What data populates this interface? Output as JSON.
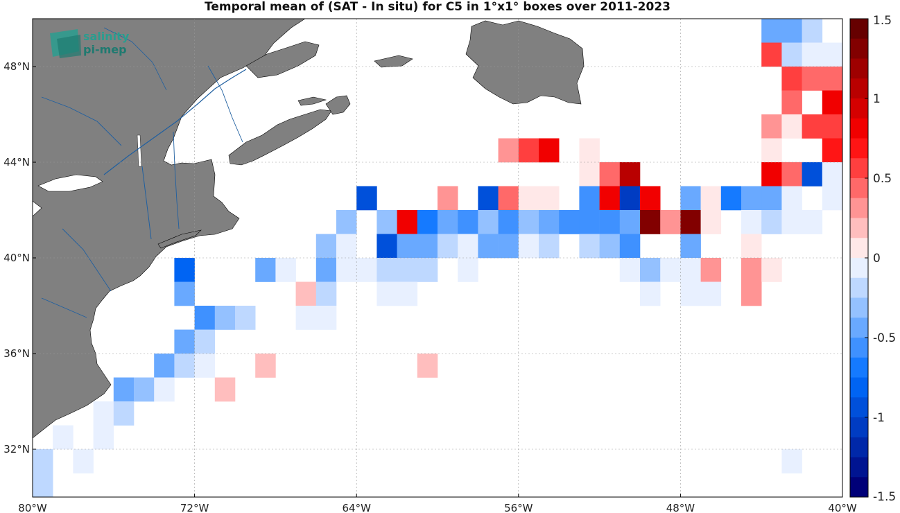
{
  "title": "Temporal mean of (SAT - In situ) for C5 in 1°x1° boxes over 2011-2023",
  "logo": {
    "line1": "salinity",
    "line2": "pi-mep"
  },
  "map": {
    "lon_range": [
      -80,
      -40
    ],
    "lat_range": [
      30,
      50
    ],
    "lon_ticks": [
      {
        "v": -80,
        "label": "80°W"
      },
      {
        "v": -72,
        "label": "72°W"
      },
      {
        "v": -64,
        "label": "64°W"
      },
      {
        "v": -56,
        "label": "56°W"
      },
      {
        "v": -48,
        "label": "48°W"
      },
      {
        "v": -40,
        "label": "40°W"
      }
    ],
    "lat_ticks": [
      {
        "v": 32,
        "label": "32°N"
      },
      {
        "v": 36,
        "label": "36°N"
      },
      {
        "v": 40,
        "label": "40°N"
      },
      {
        "v": 44,
        "label": "44°N"
      },
      {
        "v": 48,
        "label": "48°N"
      }
    ],
    "grid": true,
    "land_color": "#808080"
  },
  "colorbar": {
    "range": [
      -1.5,
      1.5
    ],
    "levels": 24,
    "tick_labels": [
      "1.5",
      "1",
      "0.5",
      "0",
      "-0.5",
      "-1",
      "-1.5"
    ],
    "tick_values": [
      1.5,
      1,
      0.5,
      0,
      -0.5,
      -1,
      -1.5
    ],
    "colormap": "blue-white-red"
  },
  "chart_data": {
    "type": "heatmap",
    "title": "Temporal mean of (SAT - In situ) for C5 in 1°x1° boxes over 2011-2023",
    "cell_size_deg": 1,
    "value_range": [
      -1.5,
      1.5
    ],
    "cells": [
      {
        "lon": -44,
        "lat": 49,
        "v": -0.4
      },
      {
        "lon": -43,
        "lat": 49,
        "v": -0.5
      },
      {
        "lon": -42,
        "lat": 49,
        "v": -0.2
      },
      {
        "lon": -40,
        "lat": 49,
        "v": 0.2
      },
      {
        "lon": -38,
        "lat": 49,
        "v": 0.2
      },
      {
        "lon": -37,
        "lat": 49,
        "v": -0.1
      },
      {
        "lon": -36,
        "lat": 49,
        "v": -0.1
      },
      {
        "lon": -44,
        "lat": 48,
        "v": 0.6
      },
      {
        "lon": -43,
        "lat": 48,
        "v": -0.2
      },
      {
        "lon": -42,
        "lat": 48,
        "v": -0.1
      },
      {
        "lon": -41,
        "lat": 48,
        "v": -0.1
      },
      {
        "lon": -39,
        "lat": 48,
        "v": 0.3
      },
      {
        "lon": -38,
        "lat": 48,
        "v": 0.6
      },
      {
        "lon": -37,
        "lat": 48,
        "v": -0.1
      },
      {
        "lon": -36,
        "lat": 48,
        "v": -0.2
      },
      {
        "lon": -43,
        "lat": 47,
        "v": 0.6
      },
      {
        "lon": -42,
        "lat": 47,
        "v": 0.4
      },
      {
        "lon": -41,
        "lat": 47,
        "v": 0.4
      },
      {
        "lon": -40,
        "lat": 47,
        "v": 0.4
      },
      {
        "lon": -39,
        "lat": 47,
        "v": 0.4
      },
      {
        "lon": -38,
        "lat": 47,
        "v": 0.1
      },
      {
        "lon": -43,
        "lat": 46,
        "v": 0.4
      },
      {
        "lon": -41,
        "lat": 46,
        "v": 0.8
      },
      {
        "lon": -40,
        "lat": 46,
        "v": 0.4
      },
      {
        "lon": -39,
        "lat": 46,
        "v": 0.8
      },
      {
        "lon": -38,
        "lat": 46,
        "v": 0.6
      },
      {
        "lon": -37,
        "lat": 46,
        "v": 0.6
      },
      {
        "lon": -36,
        "lat": 46,
        "v": -0.5
      },
      {
        "lon": -44,
        "lat": 45,
        "v": 0.3
      },
      {
        "lon": -43,
        "lat": 45,
        "v": 0.1
      },
      {
        "lon": -42,
        "lat": 45,
        "v": 0.5
      },
      {
        "lon": -41,
        "lat": 45,
        "v": 0.6
      },
      {
        "lon": -40,
        "lat": 45,
        "v": 0.5
      },
      {
        "lon": -39,
        "lat": 45,
        "v": -0.6
      },
      {
        "lon": -38,
        "lat": 45,
        "v": -0.5
      },
      {
        "lon": -37,
        "lat": 45,
        "v": -0.1
      },
      {
        "lon": -36,
        "lat": 45,
        "v": -0.1
      },
      {
        "lon": -57,
        "lat": 44,
        "v": 0.3
      },
      {
        "lon": -56,
        "lat": 44,
        "v": 0.5
      },
      {
        "lon": -55,
        "lat": 44,
        "v": 0.8
      },
      {
        "lon": -53,
        "lat": 44,
        "v": 0.1
      },
      {
        "lon": -44,
        "lat": 44,
        "v": 0.1
      },
      {
        "lon": -41,
        "lat": 44,
        "v": 0.7
      },
      {
        "lon": -40,
        "lat": 44,
        "v": 0.4
      },
      {
        "lon": -39,
        "lat": 44,
        "v": 0.4
      },
      {
        "lon": -38,
        "lat": 44,
        "v": 0.1
      },
      {
        "lon": -53,
        "lat": 43,
        "v": 0.1
      },
      {
        "lon": -52,
        "lat": 43,
        "v": 0.4
      },
      {
        "lon": -51,
        "lat": 43,
        "v": 1.1
      },
      {
        "lon": -44,
        "lat": 43,
        "v": 0.8
      },
      {
        "lon": -43,
        "lat": 43,
        "v": 0.4
      },
      {
        "lon": -42,
        "lat": 43,
        "v": -1.0
      },
      {
        "lon": -41,
        "lat": 43,
        "v": -0.1
      },
      {
        "lon": -40,
        "lat": 43,
        "v": -0.2
      },
      {
        "lon": -39,
        "lat": 43,
        "v": 0.1
      },
      {
        "lon": -38,
        "lat": 43,
        "v": -0.2
      },
      {
        "lon": -37,
        "lat": 43,
        "v": -0.1
      },
      {
        "lon": -36,
        "lat": 43,
        "v": -0.1
      },
      {
        "lon": -64,
        "lat": 42,
        "v": -0.9
      },
      {
        "lon": -60,
        "lat": 42,
        "v": 0.3
      },
      {
        "lon": -58,
        "lat": 42,
        "v": -0.9
      },
      {
        "lon": -57,
        "lat": 42,
        "v": 0.4
      },
      {
        "lon": -56,
        "lat": 42,
        "v": 0.1
      },
      {
        "lon": -55,
        "lat": 42,
        "v": 0.1
      },
      {
        "lon": -53,
        "lat": 42,
        "v": -0.6
      },
      {
        "lon": -52,
        "lat": 42,
        "v": 0.8
      },
      {
        "lon": -51,
        "lat": 42,
        "v": -1.1
      },
      {
        "lon": -50,
        "lat": 42,
        "v": 0.8
      },
      {
        "lon": -48,
        "lat": 42,
        "v": -0.4
      },
      {
        "lon": -47,
        "lat": 42,
        "v": 0.0
      },
      {
        "lon": -46,
        "lat": 42,
        "v": -0.7
      },
      {
        "lon": -45,
        "lat": 42,
        "v": -0.5
      },
      {
        "lon": -44,
        "lat": 42,
        "v": -0.4
      },
      {
        "lon": -43,
        "lat": 42,
        "v": -0.1
      },
      {
        "lon": -41,
        "lat": 42,
        "v": -0.1
      },
      {
        "lon": -65,
        "lat": 41,
        "v": -0.3
      },
      {
        "lon": -63,
        "lat": 41,
        "v": -0.3
      },
      {
        "lon": -62,
        "lat": 41,
        "v": 0.8
      },
      {
        "lon": -61,
        "lat": 41,
        "v": -0.7
      },
      {
        "lon": -60,
        "lat": 41,
        "v": -0.5
      },
      {
        "lon": -59,
        "lat": 41,
        "v": -0.6
      },
      {
        "lon": -58,
        "lat": 41,
        "v": -0.3
      },
      {
        "lon": -57,
        "lat": 41,
        "v": -0.6
      },
      {
        "lon": -56,
        "lat": 41,
        "v": -0.3
      },
      {
        "lon": -55,
        "lat": 41,
        "v": -0.5
      },
      {
        "lon": -54,
        "lat": 41,
        "v": -0.6
      },
      {
        "lon": -53,
        "lat": 41,
        "v": -0.6
      },
      {
        "lon": -52,
        "lat": 41,
        "v": -0.6
      },
      {
        "lon": -51,
        "lat": 41,
        "v": -0.4
      },
      {
        "lon": -50,
        "lat": 41,
        "v": 1.3
      },
      {
        "lon": -49,
        "lat": 41,
        "v": 0.3
      },
      {
        "lon": -48,
        "lat": 41,
        "v": 1.3
      },
      {
        "lon": -47,
        "lat": 41,
        "v": 0.1
      },
      {
        "lon": -45,
        "lat": 41,
        "v": -0.1
      },
      {
        "lon": -44,
        "lat": 41,
        "v": -0.2
      },
      {
        "lon": -43,
        "lat": 41,
        "v": -0.1
      },
      {
        "lon": -42,
        "lat": 41,
        "v": -0.1
      },
      {
        "lon": -66,
        "lat": 40,
        "v": -0.3
      },
      {
        "lon": -65,
        "lat": 40,
        "v": -0.1
      },
      {
        "lon": -63,
        "lat": 40,
        "v": -0.9
      },
      {
        "lon": -62,
        "lat": 40,
        "v": -0.5
      },
      {
        "lon": -61,
        "lat": 40,
        "v": -0.5
      },
      {
        "lon": -60,
        "lat": 40,
        "v": -0.2
      },
      {
        "lon": -59,
        "lat": 40,
        "v": -0.1
      },
      {
        "lon": -58,
        "lat": 40,
        "v": -0.4
      },
      {
        "lon": -57,
        "lat": 40,
        "v": -0.4
      },
      {
        "lon": -56,
        "lat": 40,
        "v": -0.1
      },
      {
        "lon": -55,
        "lat": 40,
        "v": -0.2
      },
      {
        "lon": -53,
        "lat": 40,
        "v": -0.2
      },
      {
        "lon": -52,
        "lat": 40,
        "v": -0.3
      },
      {
        "lon": -51,
        "lat": 40,
        "v": -0.6
      },
      {
        "lon": -48,
        "lat": 40,
        "v": -0.4
      },
      {
        "lon": -45,
        "lat": 40,
        "v": 0.1
      },
      {
        "lon": -73,
        "lat": 39,
        "v": -0.8
      },
      {
        "lon": -69,
        "lat": 39,
        "v": -0.4
      },
      {
        "lon": -68,
        "lat": 39,
        "v": -0.1
      },
      {
        "lon": -66,
        "lat": 39,
        "v": -0.4
      },
      {
        "lon": -65,
        "lat": 39,
        "v": -0.1
      },
      {
        "lon": -64,
        "lat": 39,
        "v": -0.1
      },
      {
        "lon": -63,
        "lat": 39,
        "v": -0.2
      },
      {
        "lon": -62,
        "lat": 39,
        "v": -0.2
      },
      {
        "lon": -61,
        "lat": 39,
        "v": -0.2
      },
      {
        "lon": -59,
        "lat": 39,
        "v": -0.1
      },
      {
        "lon": -51,
        "lat": 39,
        "v": -0.1
      },
      {
        "lon": -50,
        "lat": 39,
        "v": -0.3
      },
      {
        "lon": -49,
        "lat": 39,
        "v": -0.1
      },
      {
        "lon": -48,
        "lat": 39,
        "v": -0.1
      },
      {
        "lon": -47,
        "lat": 39,
        "v": 0.3
      },
      {
        "lon": -45,
        "lat": 39,
        "v": 0.3
      },
      {
        "lon": -44,
        "lat": 39,
        "v": 0.1
      },
      {
        "lon": -73,
        "lat": 38,
        "v": -0.5
      },
      {
        "lon": -67,
        "lat": 38,
        "v": 0.2
      },
      {
        "lon": -66,
        "lat": 38,
        "v": -0.2
      },
      {
        "lon": -63,
        "lat": 38,
        "v": -0.1
      },
      {
        "lon": -62,
        "lat": 38,
        "v": -0.1
      },
      {
        "lon": -50,
        "lat": 38,
        "v": -0.1
      },
      {
        "lon": -48,
        "lat": 38,
        "v": -0.1
      },
      {
        "lon": -47,
        "lat": 38,
        "v": -0.1
      },
      {
        "lon": -45,
        "lat": 38,
        "v": 0.3
      },
      {
        "lon": -72,
        "lat": 37,
        "v": -0.6
      },
      {
        "lon": -71,
        "lat": 37,
        "v": -0.3
      },
      {
        "lon": -70,
        "lat": 37,
        "v": -0.2
      },
      {
        "lon": -67,
        "lat": 37,
        "v": -0.1
      },
      {
        "lon": -66,
        "lat": 37,
        "v": -0.1
      },
      {
        "lon": -73,
        "lat": 36,
        "v": -0.4
      },
      {
        "lon": -72,
        "lat": 36,
        "v": -0.2
      },
      {
        "lon": -74,
        "lat": 35,
        "v": -0.5
      },
      {
        "lon": -73,
        "lat": 35,
        "v": -0.2
      },
      {
        "lon": -72,
        "lat": 35,
        "v": -0.1
      },
      {
        "lon": -69,
        "lat": 35,
        "v": 0.15
      },
      {
        "lon": -61,
        "lat": 35,
        "v": 0.15
      },
      {
        "lon": -76,
        "lat": 34,
        "v": -0.5
      },
      {
        "lon": -75,
        "lat": 34,
        "v": -0.3
      },
      {
        "lon": -74,
        "lat": 34,
        "v": -0.1
      },
      {
        "lon": -71,
        "lat": 34,
        "v": 0.2
      },
      {
        "lon": -77,
        "lat": 33,
        "v": -0.1
      },
      {
        "lon": -76,
        "lat": 33,
        "v": -0.2
      },
      {
        "lon": -79,
        "lat": 32,
        "v": -0.1
      },
      {
        "lon": -77,
        "lat": 32,
        "v": -0.1
      },
      {
        "lon": -80,
        "lat": 31,
        "v": -0.2
      },
      {
        "lon": -78,
        "lat": 31,
        "v": -0.1
      },
      {
        "lon": -43,
        "lat": 31,
        "v": -0.1
      },
      {
        "lon": -80,
        "lat": 30,
        "v": -0.2
      }
    ]
  }
}
